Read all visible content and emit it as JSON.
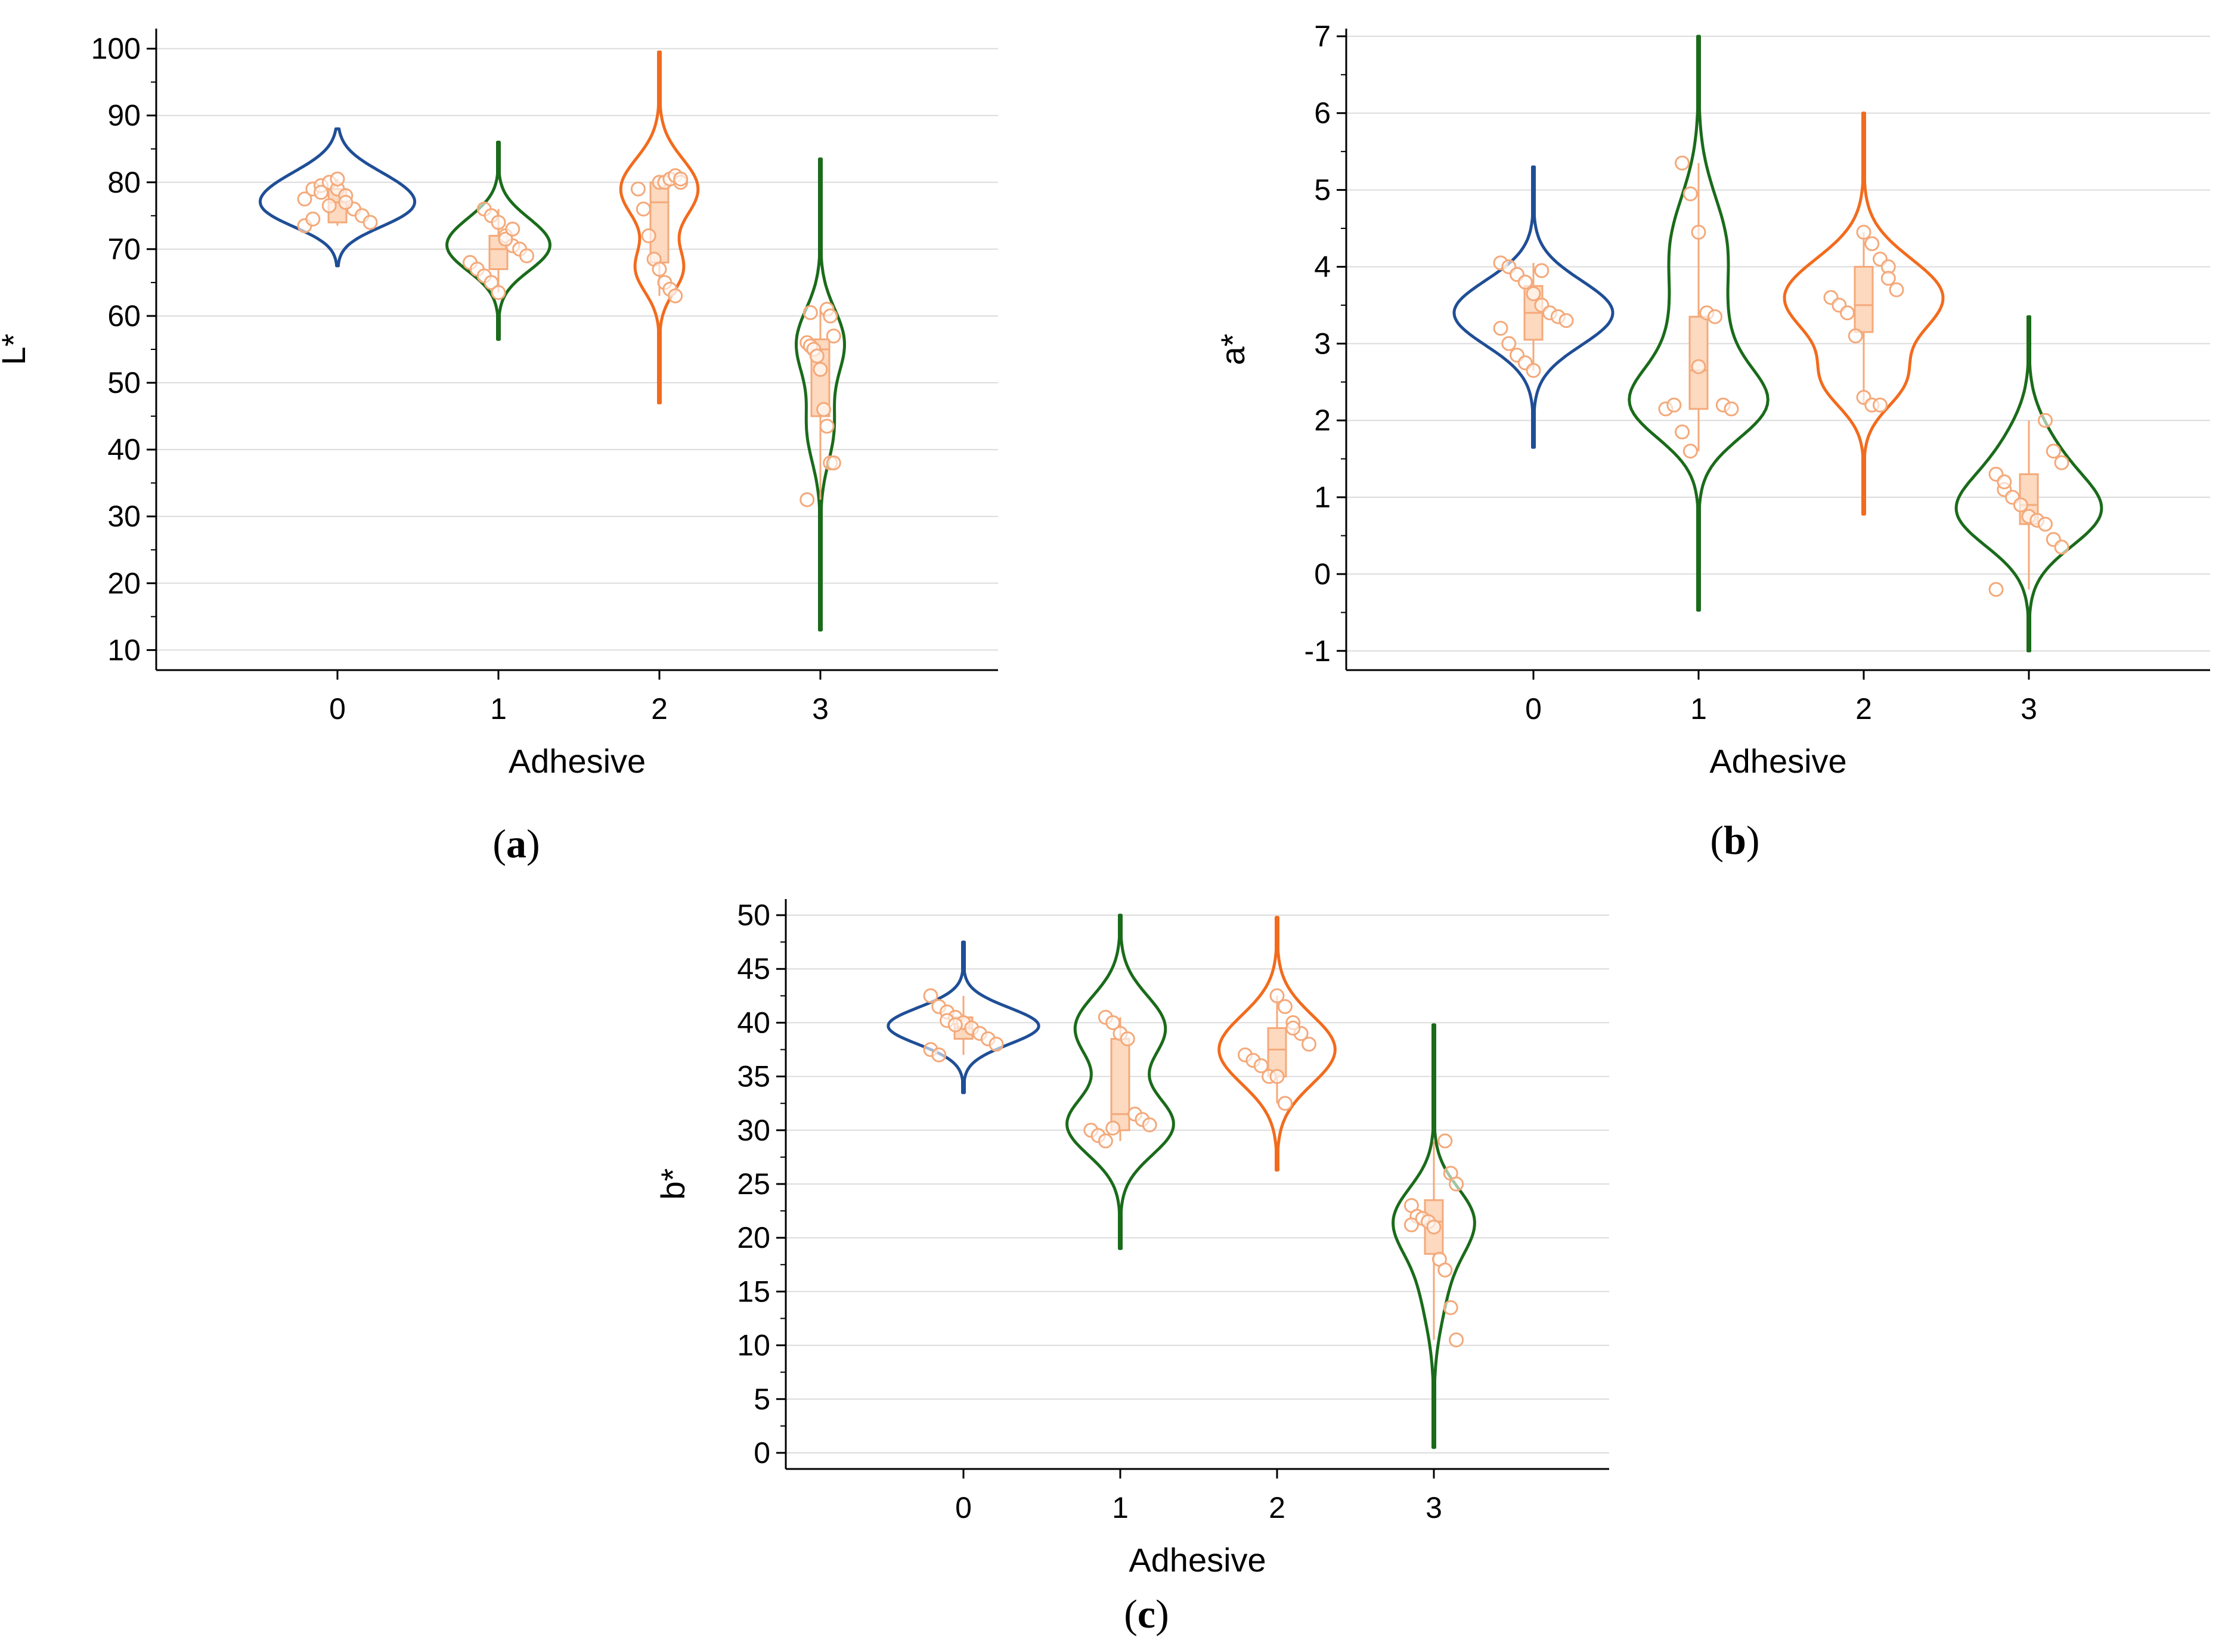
{
  "figure": {
    "palette": {
      "0": "#1f4e96",
      "1": "#1a6b1a",
      "2": "#f26b1d",
      "3": "#1a6b1a",
      "points": "#f4a97a",
      "box_fill": "#fcd9bf",
      "grid": "#dcdcdc"
    }
  },
  "chart_data": [
    {
      "id": "a",
      "type": "violin",
      "caption": "a",
      "xlabel": "Adhesive",
      "ylabel": "L*",
      "categories": [
        "0",
        "1",
        "2",
        "3"
      ],
      "yticks": [
        10,
        20,
        30,
        40,
        50,
        60,
        70,
        80,
        90,
        100
      ],
      "ylim": [
        7,
        103
      ],
      "grid": true,
      "series": [
        {
          "name": "0",
          "color": "#1f4e96",
          "range": [
            67.5,
            88
          ],
          "bumps": [
            {
              "c": 78.5,
              "s": 3.5,
              "w": 1.0
            },
            {
              "c": 75,
              "s": 2.5,
              "w": 0.45
            }
          ],
          "half_width": 0.48,
          "points": [
            77.5,
            79,
            79.5,
            80,
            79,
            78,
            76,
            75,
            74,
            73.5,
            74.5,
            78.5,
            76.5,
            80.5,
            77
          ],
          "box": {
            "q1": 74,
            "median": 77,
            "q3": 79,
            "min": 73.5,
            "max": 80.5
          }
        },
        {
          "name": "1",
          "color": "#1a6b1a",
          "range": [
            56.5,
            86
          ],
          "bumps": [
            {
              "c": 70,
              "s": 3.5,
              "w": 1.0
            },
            {
              "c": 74,
              "s": 3,
              "w": 0.25
            }
          ],
          "half_width": 0.32,
          "points": [
            76,
            75,
            74,
            72,
            70.5,
            70,
            69,
            68,
            67,
            66,
            65,
            63.5,
            71.5,
            73
          ],
          "box": {
            "q1": 67,
            "median": 70,
            "q3": 72,
            "min": 63.5,
            "max": 76
          }
        },
        {
          "name": "2",
          "color": "#f26b1d",
          "range": [
            47,
            99.5
          ],
          "bumps": [
            {
              "c": 79,
              "s": 4.5,
              "w": 1.0
            },
            {
              "c": 67,
              "s": 3.5,
              "w": 0.6
            }
          ],
          "half_width": 0.24,
          "points": [
            80,
            80,
            80.5,
            81,
            80,
            79,
            76,
            72,
            68.5,
            67,
            65,
            64,
            63,
            80.5
          ],
          "box": {
            "q1": 68,
            "median": 77,
            "q3": 80,
            "min": 63,
            "max": 81
          }
        },
        {
          "name": "3",
          "color": "#1a6b1a",
          "range": [
            13,
            83.5
          ],
          "bumps": [
            {
              "c": 56,
              "s": 5,
              "w": 1.0
            },
            {
              "c": 43,
              "s": 5,
              "w": 0.55
            }
          ],
          "half_width": 0.15,
          "points": [
            61,
            60,
            57,
            56,
            55.5,
            55,
            54,
            52,
            46,
            43.5,
            38,
            38,
            32.5,
            60.5
          ],
          "box": {
            "q1": 45,
            "median": 55,
            "q3": 56.5,
            "min": 32.5,
            "max": 61
          }
        }
      ]
    },
    {
      "id": "b",
      "type": "violin",
      "caption": "b",
      "xlabel": "Adhesive",
      "ylabel": "a*",
      "categories": [
        "0",
        "1",
        "2",
        "3"
      ],
      "yticks": [
        -1,
        0,
        1,
        2,
        3,
        4,
        5,
        6,
        7
      ],
      "ylim": [
        -1.25,
        7.1
      ],
      "grid": true,
      "series": [
        {
          "name": "0",
          "color": "#1f4e96",
          "range": [
            1.65,
            5.3
          ],
          "bumps": [
            {
              "c": 3.4,
              "s": 0.42,
              "w": 1.0
            }
          ],
          "half_width": 0.48,
          "points": [
            4.05,
            4.0,
            3.9,
            3.8,
            3.65,
            3.5,
            3.4,
            3.35,
            3.3,
            3.2,
            3.0,
            2.85,
            2.75,
            2.65,
            3.95
          ],
          "box": {
            "q1": 3.05,
            "median": 3.4,
            "q3": 3.75,
            "min": 2.65,
            "max": 4.05
          }
        },
        {
          "name": "1",
          "color": "#1a6b1a",
          "range": [
            -0.47,
            7.0
          ],
          "bumps": [
            {
              "c": 2.2,
              "s": 0.45,
              "w": 1.0
            },
            {
              "c": 4.2,
              "s": 0.7,
              "w": 0.45
            },
            {
              "c": 3.0,
              "s": 0.5,
              "w": 0.3
            }
          ],
          "half_width": 0.42,
          "points": [
            5.35,
            4.95,
            4.45,
            3.4,
            3.35,
            2.2,
            2.15,
            2.15,
            2.2,
            1.85,
            1.6,
            2.7
          ],
          "box": {
            "q1": 2.15,
            "median": 2.65,
            "q3": 3.35,
            "min": 1.6,
            "max": 5.35
          }
        },
        {
          "name": "2",
          "color": "#f26b1d",
          "range": [
            0.78,
            6.0
          ],
          "bumps": [
            {
              "c": 3.6,
              "s": 0.5,
              "w": 1.0
            },
            {
              "c": 2.5,
              "s": 0.35,
              "w": 0.45
            }
          ],
          "half_width": 0.48,
          "points": [
            4.45,
            4.3,
            4.1,
            4.0,
            3.7,
            3.6,
            3.5,
            3.4,
            3.1,
            2.3,
            2.2,
            2.2,
            3.85
          ],
          "box": {
            "q1": 3.15,
            "median": 3.5,
            "q3": 4.0,
            "min": 2.2,
            "max": 4.45
          }
        },
        {
          "name": "3",
          "color": "#1a6b1a",
          "range": [
            -1.0,
            3.35
          ],
          "bumps": [
            {
              "c": 0.8,
              "s": 0.45,
              "w": 1.0
            },
            {
              "c": 1.6,
              "s": 0.45,
              "w": 0.3
            }
          ],
          "half_width": 0.44,
          "points": [
            2.0,
            1.6,
            1.45,
            1.3,
            1.1,
            1.0,
            0.9,
            0.75,
            0.7,
            0.65,
            0.45,
            0.35,
            -0.2,
            1.2
          ],
          "box": {
            "q1": 0.65,
            "median": 0.9,
            "q3": 1.3,
            "min": -0.2,
            "max": 2.0
          }
        }
      ]
    },
    {
      "id": "c",
      "type": "violin",
      "caption": "c",
      "xlabel": "Adhesive",
      "ylabel": "b*",
      "categories": [
        "0",
        "1",
        "2",
        "3"
      ],
      "yticks": [
        0,
        5,
        10,
        15,
        20,
        25,
        30,
        35,
        40,
        45,
        50
      ],
      "ylim": [
        -1.5,
        51.5
      ],
      "grid": true,
      "series": [
        {
          "name": "0",
          "color": "#1f4e96",
          "range": [
            33.5,
            47.5
          ],
          "bumps": [
            {
              "c": 39.7,
              "s": 1.7,
              "w": 1.0
            }
          ],
          "half_width": 0.48,
          "points": [
            42.5,
            41.5,
            41,
            40.5,
            40,
            39.5,
            39,
            38.5,
            38,
            37.5,
            37,
            40.2,
            39.8
          ],
          "box": {
            "q1": 38.5,
            "median": 39.5,
            "q3": 40.5,
            "min": 37,
            "max": 42.5
          }
        },
        {
          "name": "1",
          "color": "#1a6b1a",
          "range": [
            19,
            50
          ],
          "bumps": [
            {
              "c": 30.5,
              "s": 2.8,
              "w": 1.0
            },
            {
              "c": 39.5,
              "s": 3.0,
              "w": 0.85
            }
          ],
          "half_width": 0.34,
          "points": [
            40.5,
            40,
            39,
            38.5,
            31.5,
            31,
            30.5,
            30,
            29.5,
            29,
            30.2
          ],
          "box": {
            "q1": 30,
            "median": 31.5,
            "q3": 38.5,
            "min": 29,
            "max": 40.5
          }
        },
        {
          "name": "2",
          "color": "#f26b1d",
          "range": [
            26.3,
            49.8
          ],
          "bumps": [
            {
              "c": 37.5,
              "s": 3.2,
              "w": 1.0
            }
          ],
          "half_width": 0.37,
          "points": [
            42.5,
            41.5,
            40,
            39,
            38,
            37,
            36.5,
            36,
            35,
            35,
            32.5,
            39.5
          ],
          "box": {
            "q1": 35,
            "median": 37.5,
            "q3": 39.5,
            "min": 32.5,
            "max": 42.5
          }
        },
        {
          "name": "3",
          "color": "#1a6b1a",
          "range": [
            0.5,
            39.8
          ],
          "bumps": [
            {
              "c": 21.8,
              "s": 3.0,
              "w": 1.0
            },
            {
              "c": 16,
              "s": 4,
              "w": 0.35
            }
          ],
          "half_width": 0.26,
          "points": [
            29,
            26,
            25,
            23,
            22,
            21.8,
            21.5,
            21,
            18,
            17,
            13.5,
            10.5,
            21.2
          ],
          "box": {
            "q1": 18.5,
            "median": 21.5,
            "q3": 23.5,
            "min": 10.5,
            "max": 29
          }
        }
      ]
    }
  ]
}
